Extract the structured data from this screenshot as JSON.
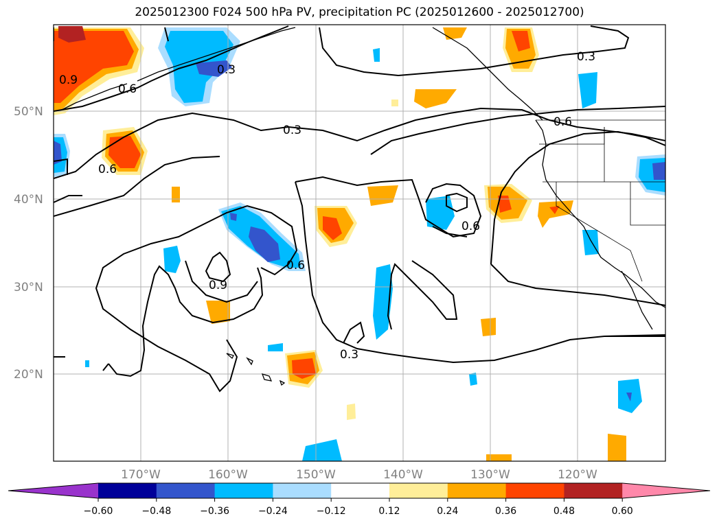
{
  "title": "2025012300 F024 500 hPa PV, precipitation PC (2025012600 - 2025012700)",
  "latitude_labels": [
    "50°N",
    "40°N",
    "30°N",
    "20°N"
  ],
  "longitude_labels": [
    "170°W",
    "160°W",
    "150°W",
    "140°W",
    "130°W",
    "120°W"
  ],
  "colorbar": {
    "ticks": [
      "−0.60",
      "−0.48",
      "−0.36",
      "−0.24",
      "−0.12",
      "0.12",
      "0.24",
      "0.36",
      "0.48",
      "0.60"
    ],
    "colors": [
      "#9933cc",
      "#000099",
      "#3355cc",
      "#00bbff",
      "#aaddff",
      "#ffffff",
      "#ffee99",
      "#ffaa00",
      "#ff4400",
      "#b22222",
      "#ff88aa"
    ]
  },
  "contour_labels": [
    {
      "text": "0.9"
    },
    {
      "text": "0.6"
    },
    {
      "text": "0.3"
    },
    {
      "text": "0.3"
    },
    {
      "text": "0.6"
    },
    {
      "text": "0.3"
    },
    {
      "text": "0.6"
    },
    {
      "text": "0.9"
    },
    {
      "text": "0.6"
    },
    {
      "text": "0.3"
    },
    {
      "text": "0.6"
    }
  ],
  "colors": {
    "positive_core": "#ff4400",
    "positive_mid": "#ffaa00",
    "positive_low": "#ffee99",
    "negative_core": "#3355cc",
    "negative_mid": "#00bbff",
    "negative_low": "#aaddff"
  }
}
